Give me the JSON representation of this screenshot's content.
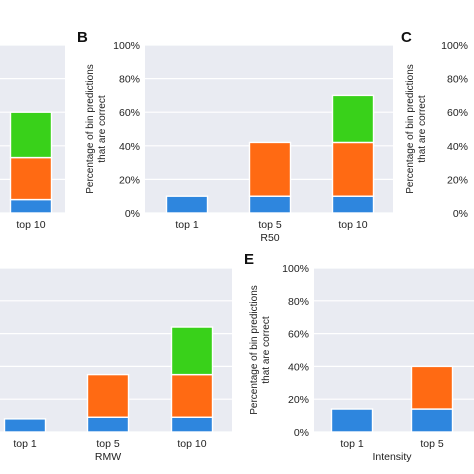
{
  "colors": {
    "top1": "#2e86de",
    "top5": "#ff6a13",
    "top10": "#39d11a",
    "background": "#e9ebf2",
    "grid": "#ffffff"
  },
  "chart_data": [
    {
      "panel": "",
      "type": "bar",
      "stacked": true,
      "categories": [
        "top 10"
      ],
      "xlabel": "",
      "ylabel": "",
      "ylim": [
        0,
        100
      ],
      "series": [
        {
          "values": [
            8
          ]
        },
        {
          "values": [
            25
          ]
        },
        {
          "values": [
            27
          ]
        }
      ]
    },
    {
      "panel": "B",
      "type": "bar",
      "stacked": true,
      "categories": [
        "top 1",
        "top 5",
        "top 10"
      ],
      "xlabel": "R50",
      "ylabel": "Percentage of bin predictions that are correct",
      "ylim": [
        0,
        100
      ],
      "yticks": [
        "0%",
        "20%",
        "40%",
        "60%",
        "80%",
        "100%"
      ],
      "series": [
        {
          "values": [
            10,
            10,
            10
          ]
        },
        {
          "values": [
            0,
            32,
            32
          ]
        },
        {
          "values": [
            0,
            0,
            28
          ]
        }
      ]
    },
    {
      "panel": "C",
      "type": "bar",
      "stacked": true,
      "categories": [],
      "xlabel": "",
      "ylabel": "Percentage of bin predictions that are correct",
      "ylim": [
        0,
        100
      ],
      "yticks": [
        "0%",
        "20%",
        "40%",
        "60%",
        "80%",
        "100%"
      ],
      "series": []
    },
    {
      "panel": "",
      "type": "bar",
      "stacked": true,
      "categories": [
        "top 1",
        "top 5",
        "top 10"
      ],
      "xlabel": "RMW",
      "ylabel": "",
      "ylim": [
        0,
        100
      ],
      "series": [
        {
          "values": [
            8,
            9,
            9
          ]
        },
        {
          "values": [
            0,
            26,
            26
          ]
        },
        {
          "values": [
            0,
            0,
            29
          ]
        }
      ]
    },
    {
      "panel": "E",
      "type": "bar",
      "stacked": true,
      "categories": [
        "top 1",
        "top 5"
      ],
      "xlabel": "Intensity",
      "ylabel": "Percentage of bin predictions that are correct",
      "ylim": [
        0,
        100
      ],
      "yticks": [
        "0%",
        "20%",
        "40%",
        "60%",
        "80%",
        "100%"
      ],
      "series": [
        {
          "values": [
            14,
            14
          ]
        },
        {
          "values": [
            0,
            26
          ]
        }
      ]
    }
  ]
}
